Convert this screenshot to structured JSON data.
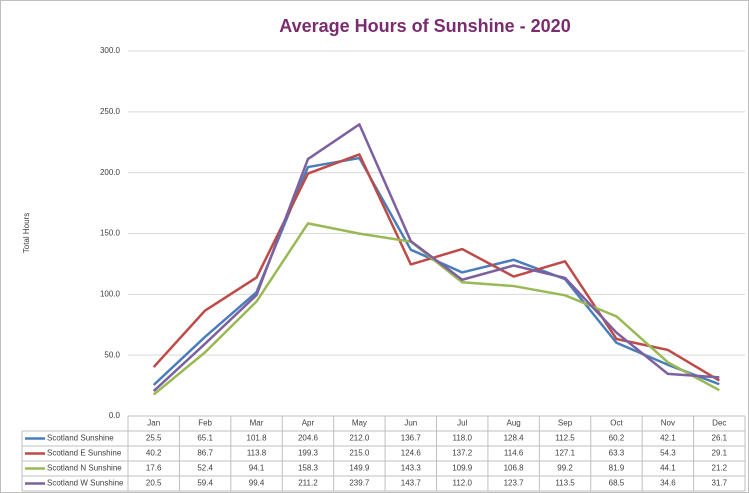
{
  "chart_data": {
    "type": "line",
    "title": "Average Hours of Sunshine - 2020",
    "y_label": "Total Hours",
    "categories": [
      "Jan",
      "Feb",
      "Mar",
      "Apr",
      "May",
      "Jun",
      "Jul",
      "Aug",
      "Sep",
      "Oct",
      "Nov",
      "Dec"
    ],
    "series": [
      {
        "name": "Scotland Sunshine",
        "color": "#4a7ebb",
        "values": [
          25.5,
          65.1,
          101.8,
          204.6,
          212.0,
          136.7,
          118.0,
          128.4,
          112.5,
          60.2,
          42.1,
          26.1
        ],
        "value_labels": [
          "25.5",
          "65.1",
          "101.8",
          "204.6",
          "212.0",
          "136.7",
          "118.0",
          "128.4",
          "112.5",
          "60.2",
          "42.1",
          "26.1"
        ]
      },
      {
        "name": "Scotland E Sunshine",
        "color": "#be4b48",
        "values": [
          40.2,
          86.7,
          113.8,
          199.3,
          215.0,
          124.6,
          137.2,
          114.6,
          127.1,
          63.3,
          54.3,
          29.1
        ],
        "value_labels": [
          "40.2",
          "86.7",
          "113.8",
          "199.3",
          "215.0",
          "124.6",
          "137.2",
          "114.6",
          "127.1",
          "63.3",
          "54.3",
          "29.1"
        ]
      },
      {
        "name": "Scotland N Sunshine",
        "color": "#98b954",
        "values": [
          17.6,
          52.4,
          94.1,
          158.3,
          149.9,
          143.3,
          109.9,
          106.8,
          99.2,
          81.9,
          44.1,
          21.2
        ],
        "value_labels": [
          "17.6",
          "52.4",
          "94.1",
          "158.3",
          "149.9",
          "143.3",
          "109.9",
          "106.8",
          "99.2",
          "81.9",
          "44.1",
          "21.2"
        ]
      },
      {
        "name": "Scotland W Sunshine",
        "color": "#7d60a0",
        "values": [
          20.5,
          59.4,
          99.4,
          211.2,
          239.7,
          143.7,
          112.0,
          123.7,
          113.5,
          68.5,
          34.6,
          31.7
        ],
        "value_labels": [
          "20.5",
          "59.4",
          "99.4",
          "211.2",
          "239.7",
          "143.7",
          "112.0",
          "123.7",
          "113.5",
          "68.5",
          "34.6",
          "31.7"
        ]
      }
    ],
    "ylim": [
      0,
      300
    ],
    "yticks": [
      {
        "value": 0,
        "label": "0.0"
      },
      {
        "value": 50,
        "label": "50.0"
      },
      {
        "value": 100,
        "label": "100.0"
      },
      {
        "value": 150,
        "label": "150.0"
      },
      {
        "value": 200,
        "label": "200.0"
      },
      {
        "value": 250,
        "label": "250.0"
      },
      {
        "value": 300,
        "label": "300.0"
      }
    ],
    "grid": true
  }
}
